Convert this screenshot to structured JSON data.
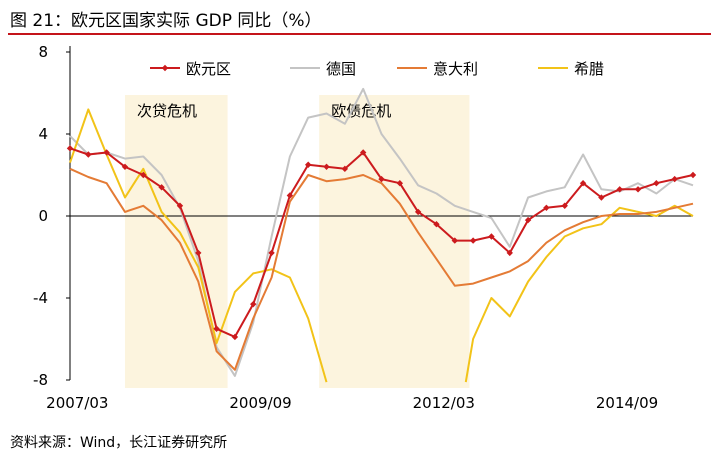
{
  "header": {
    "title": "图 21：欧元区国家实际 GDP 同比（%）"
  },
  "footer": {
    "source": "资料来源：Wind，长江证券研究所"
  },
  "chart_data": {
    "type": "line",
    "title": "图 21：欧元区国家实际 GDP 同比（%）",
    "xlabel": "",
    "ylabel": "",
    "ylim": [
      -8,
      8
    ],
    "yticks": [
      -8,
      -4,
      0,
      4,
      8
    ],
    "ytick_labels": [
      "-8",
      "-4",
      "0",
      "4",
      "8"
    ],
    "xlim": [
      2007.1,
      2015.6
    ],
    "xticks": [
      2007.2,
      2009.7,
      2012.2,
      2014.7
    ],
    "xtick_labels": [
      "2007/03",
      "2009/09",
      "2012/03",
      "2014/09"
    ],
    "legend_position": "top",
    "grid": false,
    "bands": [
      {
        "label": "次贷危机",
        "x0": 2007.85,
        "x1": 2009.25,
        "color": "#fcf4de"
      },
      {
        "label": "欧债危机",
        "x0": 2010.5,
        "x1": 2012.55,
        "color": "#fcf4de"
      }
    ],
    "series": [
      {
        "name": "欧元区",
        "color": "#cc1b1e",
        "marker": "diamond",
        "x": [
          2007.1,
          2007.35,
          2007.6,
          2007.85,
          2008.1,
          2008.35,
          2008.6,
          2008.85,
          2009.1,
          2009.35,
          2009.6,
          2009.85,
          2010.1,
          2010.35,
          2010.6,
          2010.85,
          2011.1,
          2011.35,
          2011.6,
          2011.85,
          2012.1,
          2012.35,
          2012.6,
          2012.85,
          2013.1,
          2013.35,
          2013.6,
          2013.85,
          2014.1,
          2014.35,
          2014.6,
          2014.85,
          2015.1,
          2015.35,
          2015.6
        ],
        "y": [
          3.3,
          3.0,
          3.1,
          2.4,
          2.0,
          1.4,
          0.5,
          -1.8,
          -5.5,
          -5.9,
          -4.3,
          -1.8,
          1.0,
          2.5,
          2.4,
          2.3,
          3.1,
          1.8,
          1.6,
          0.2,
          -0.4,
          -1.2,
          -1.2,
          -1.0,
          -1.8,
          -0.2,
          0.4,
          0.5,
          1.6,
          0.9,
          1.3,
          1.3,
          1.6,
          1.8,
          2.0
        ]
      },
      {
        "name": "德国",
        "color": "#c4c4c4",
        "marker": "none",
        "x": [
          2007.1,
          2007.35,
          2007.6,
          2007.85,
          2008.1,
          2008.35,
          2008.6,
          2008.85,
          2009.1,
          2009.35,
          2009.6,
          2009.85,
          2010.1,
          2010.35,
          2010.6,
          2010.85,
          2011.1,
          2011.35,
          2011.6,
          2011.85,
          2012.1,
          2012.35,
          2012.6,
          2012.85,
          2013.1,
          2013.35,
          2013.6,
          2013.85,
          2014.1,
          2014.35,
          2014.6,
          2014.85,
          2015.1,
          2015.35,
          2015.6
        ],
        "y": [
          3.9,
          3.0,
          3.1,
          2.8,
          2.9,
          2.0,
          0.4,
          -2.2,
          -6.4,
          -7.8,
          -5.2,
          -1.0,
          2.9,
          4.8,
          5.0,
          4.5,
          6.2,
          4.0,
          2.8,
          1.5,
          1.1,
          0.5,
          0.2,
          -0.1,
          -1.5,
          0.9,
          1.2,
          1.4,
          3.0,
          1.3,
          1.2,
          1.6,
          1.1,
          1.8,
          1.5
        ]
      },
      {
        "name": "意大利",
        "color": "#e47b35",
        "marker": "none",
        "x": [
          2007.1,
          2007.35,
          2007.6,
          2007.85,
          2008.1,
          2008.35,
          2008.6,
          2008.85,
          2009.1,
          2009.35,
          2009.6,
          2009.85,
          2010.1,
          2010.35,
          2010.6,
          2010.85,
          2011.1,
          2011.35,
          2011.6,
          2011.85,
          2012.1,
          2012.35,
          2012.6,
          2012.85,
          2013.1,
          2013.35,
          2013.6,
          2013.85,
          2014.1,
          2014.35,
          2014.6,
          2014.85,
          2015.1,
          2015.35,
          2015.6
        ],
        "y": [
          2.3,
          1.9,
          1.6,
          0.2,
          0.5,
          -0.2,
          -1.3,
          -3.2,
          -6.6,
          -7.5,
          -5.0,
          -3.0,
          0.7,
          2.0,
          1.7,
          1.8,
          2.0,
          1.6,
          0.6,
          -0.8,
          -2.1,
          -3.4,
          -3.3,
          -3.0,
          -2.7,
          -2.2,
          -1.3,
          -0.7,
          -0.3,
          0.0,
          0.1,
          0.1,
          0.2,
          0.4,
          0.6
        ]
      },
      {
        "name": "希腊",
        "color": "#f2c318",
        "marker": "none",
        "x": [
          2007.1,
          2007.35,
          2007.6,
          2007.85,
          2008.1,
          2008.35,
          2008.6,
          2008.85,
          2009.1,
          2009.35,
          2009.6,
          2009.85,
          2010.1,
          2010.35,
          2010.6,
          null,
          2012.5,
          2012.6,
          2012.85,
          2013.1,
          2013.35,
          2013.6,
          2013.85,
          2014.1,
          2014.35,
          2014.6,
          2014.85,
          2015.1,
          2015.35,
          2015.6
        ],
        "y": [
          2.6,
          5.2,
          3.0,
          0.9,
          2.3,
          0.2,
          -0.8,
          -2.5,
          -6.2,
          -3.7,
          -2.8,
          -2.6,
          -3.0,
          -5.0,
          -8.1,
          null,
          -8.1,
          -6.0,
          -4.0,
          -4.9,
          -3.2,
          -2.0,
          -1.0,
          -0.6,
          -0.4,
          0.4,
          0.2,
          0.0,
          0.5,
          0.0
        ]
      }
    ]
  }
}
